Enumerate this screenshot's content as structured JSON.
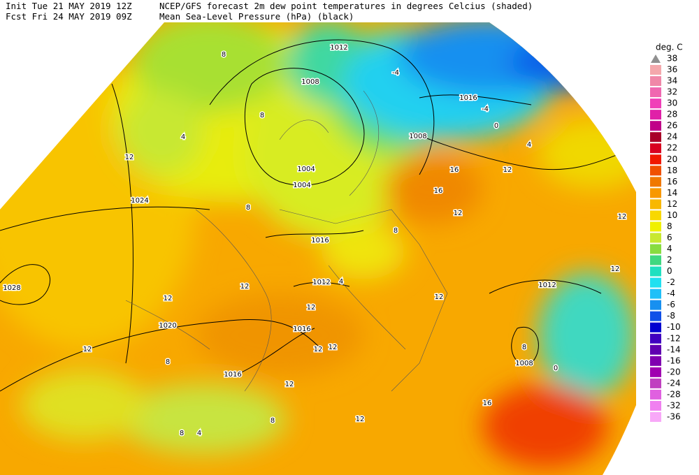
{
  "header": {
    "init": "Init  Tue 21 MAY 2019 12Z",
    "fcst": "Fcst Fri 24 MAY 2019 09Z",
    "title": "NCEP/GFS forecast 2m dew point temperatures in degrees Celcius (shaded)",
    "subtitle": "Mean Sea-Level Pressure (hPa) (black)"
  },
  "legend": {
    "title": "deg. C",
    "labels": [
      38,
      36,
      34,
      32,
      30,
      28,
      26,
      24,
      22,
      20,
      18,
      16,
      14,
      12,
      10,
      8,
      6,
      4,
      2,
      0,
      -2,
      -4,
      -6,
      -8,
      -10,
      -12,
      -14,
      -16,
      -20,
      -24,
      -28,
      -32,
      -36
    ],
    "colors": [
      "#909090",
      "#f4a8ac",
      "#f088a8",
      "#f068b0",
      "#f040b8",
      "#e020a8",
      "#c00088",
      "#a80028",
      "#d80020",
      "#f01800",
      "#f05000",
      "#f07800",
      "#f89800",
      "#f8b800",
      "#f8d800",
      "#f0f000",
      "#c8e830",
      "#88dc40",
      "#40d880",
      "#20e0c0",
      "#20e0f0",
      "#20c0f8",
      "#1890f0",
      "#1050e8",
      "#0000d0",
      "#4000c0",
      "#6000b0",
      "#8000b0",
      "#a000b0",
      "#c040c0",
      "#e060e0",
      "#f080f0",
      "#f8a8f8"
    ]
  },
  "map": {
    "isobar_labels": [
      "1024",
      "1028",
      "1020",
      "1016",
      "1016",
      "1016",
      "1016",
      "1012",
      "1008",
      "1008",
      "1008",
      "1004",
      "1004",
      "1012",
      "1012"
    ],
    "dewpoint_labels": [
      "12",
      "8",
      "4",
      "8",
      "12",
      "12",
      "12",
      "8",
      "12",
      "12",
      "12",
      "12",
      "12",
      "8",
      "4",
      "8",
      "16",
      "16",
      "12",
      "12",
      "12",
      "12",
      "8",
      "0",
      "16",
      "-4",
      "-4",
      "0",
      "4",
      "12",
      "8",
      "8",
      "4"
    ]
  }
}
